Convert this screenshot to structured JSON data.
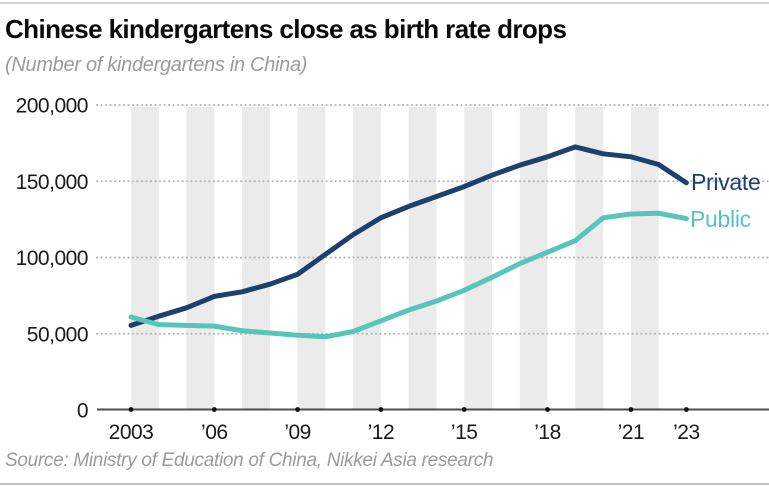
{
  "header": {
    "title": "Chinese kindergartens close as birth rate drops",
    "subtitle": "(Number of kindergartens in China)"
  },
  "footer": {
    "source": "Source: Ministry of Education of China, Nikkei Asia research"
  },
  "chart_data": {
    "type": "line",
    "title": "Chinese kindergartens close as birth rate drops",
    "subtitle": "(Number of kindergartens in China)",
    "x": [
      2003,
      2004,
      2005,
      2006,
      2007,
      2008,
      2009,
      2010,
      2011,
      2012,
      2013,
      2014,
      2015,
      2016,
      2017,
      2018,
      2019,
      2020,
      2021,
      2022,
      2023
    ],
    "series": [
      {
        "name": "Private",
        "color": "#1e406f",
        "values": [
          55500,
          61500,
          67000,
          74500,
          77500,
          82500,
          89000,
          102000,
          115000,
          126000,
          133500,
          140000,
          146500,
          154000,
          160500,
          166000,
          172500,
          168000,
          166000,
          161000,
          149000
        ]
      },
      {
        "name": "Public",
        "color": "#58c5ba",
        "values": [
          61000,
          56000,
          55500,
          55000,
          52000,
          50500,
          49000,
          48000,
          51500,
          58500,
          65500,
          71500,
          78500,
          87000,
          96000,
          103500,
          111000,
          126000,
          128500,
          129000,
          125500
        ]
      }
    ],
    "xlim": [
      2003,
      2023
    ],
    "ylim": [
      0,
      200000
    ],
    "y_ticks": [
      0,
      50000,
      100000,
      150000,
      200000
    ],
    "y_tick_labels": [
      "0",
      "50,000",
      "100,000",
      "150,000",
      "200,000"
    ],
    "x_tick_years": [
      2003,
      2006,
      2009,
      2012,
      2015,
      2018,
      2021,
      2023
    ],
    "x_tick_labels": [
      "2003",
      "’06",
      "’09",
      "’12",
      "’15",
      "’18",
      "’21",
      "’23"
    ],
    "stripe_start_years": [
      2003,
      2005,
      2007,
      2009,
      2011,
      2013,
      2015,
      2017,
      2019,
      2021
    ],
    "grid": "dotted-horizontal-on",
    "legend_position": "right-of-line-ends",
    "colors": {
      "private_line": "#1e406f",
      "public_line": "#58c5ba",
      "stripe": "#ebebeb",
      "gridline": "#b3b3b3",
      "axis": "#4d4d4d",
      "tick_dot": "#111111",
      "tick_label": "#1a1a1a",
      "title_text": "#0a0a0a",
      "muted_text": "#9b9b9b"
    }
  }
}
